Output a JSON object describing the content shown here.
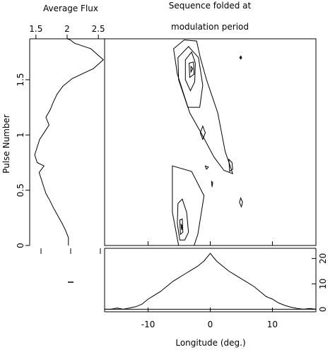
{
  "titles": {
    "left": "Average Flux",
    "right_line1": "Sequence folded at",
    "right_line2": "modulation period"
  },
  "chart_data": [
    {
      "type": "line",
      "name": "average-flux-profile",
      "xlabel": "Average Flux",
      "ylabel": "Pulse Number",
      "xlim": [
        1.4,
        2.6
      ],
      "ylim": [
        0,
        1.87
      ],
      "xticks": [
        "1.5",
        "2",
        "2.5"
      ],
      "yticks": [
        "0",
        "0.5",
        "1",
        "1.5"
      ],
      "x": [
        2.02,
        2.02,
        1.98,
        1.92,
        1.85,
        1.78,
        1.72,
        1.66,
        1.62,
        1.58,
        1.55,
        1.63,
        1.52,
        1.48,
        1.52,
        1.56,
        1.63,
        1.71,
        1.66,
        1.73,
        1.78,
        1.84,
        1.93,
        2.08,
        2.42,
        2.58,
        2.38,
        2.12,
        2.05,
        2.0
      ],
      "y": [
        0.0,
        0.07,
        0.13,
        0.2,
        0.27,
        0.34,
        0.41,
        0.47,
        0.54,
        0.61,
        0.66,
        0.72,
        0.75,
        0.82,
        0.89,
        0.96,
        1.02,
        1.09,
        1.16,
        1.23,
        1.3,
        1.37,
        1.44,
        1.51,
        1.6,
        1.68,
        1.78,
        1.83,
        1.86,
        1.87
      ]
    },
    {
      "type": "contour",
      "name": "folded-sequence-contours",
      "xlabel": "Longitude (deg.)",
      "ylabel": "Pulse Number",
      "xlim": [
        -17,
        17
      ],
      "ylim": [
        0,
        1.87
      ],
      "note_values_in_data_units": true,
      "contours": [
        [
          [
            -5.9,
            1.78
          ],
          [
            -4.2,
            1.86
          ],
          [
            -2.2,
            1.85
          ],
          [
            -1.6,
            1.7
          ],
          [
            -0.6,
            1.5
          ],
          [
            1.2,
            1.2
          ],
          [
            2.4,
            0.85
          ],
          [
            3.2,
            0.72
          ],
          [
            3.6,
            0.65
          ],
          [
            2.2,
            0.68
          ],
          [
            0.6,
            0.8
          ],
          [
            -1.3,
            1.0
          ],
          [
            -3.3,
            1.2
          ],
          [
            -5.3,
            1.55
          ],
          [
            -5.9,
            1.78
          ]
        ],
        [
          [
            -5.2,
            1.7
          ],
          [
            -3.5,
            1.8
          ],
          [
            -1.9,
            1.7
          ],
          [
            -1.2,
            1.45
          ],
          [
            -1.7,
            1.25
          ],
          [
            -3.6,
            1.25
          ],
          [
            -5.1,
            1.5
          ],
          [
            -5.2,
            1.7
          ]
        ],
        [
          [
            -4.0,
            1.68
          ],
          [
            -3.0,
            1.75
          ],
          [
            -2.4,
            1.65
          ],
          [
            -2.5,
            1.48
          ],
          [
            -3.2,
            1.4
          ],
          [
            -4.0,
            1.5
          ],
          [
            -4.0,
            1.68
          ]
        ],
        [
          [
            -3.4,
            1.65
          ],
          [
            -2.7,
            1.66
          ],
          [
            -2.6,
            1.55
          ],
          [
            -3.3,
            1.52
          ],
          [
            -3.4,
            1.65
          ]
        ],
        [
          [
            -3.1,
            1.62
          ],
          [
            -2.8,
            1.6
          ],
          [
            -3.1,
            1.57
          ],
          [
            -3.1,
            1.62
          ]
        ],
        [
          [
            -1.2,
            1.08
          ],
          [
            -0.8,
            1.02
          ],
          [
            -1.2,
            0.96
          ],
          [
            -1.6,
            1.02
          ],
          [
            -1.2,
            1.08
          ]
        ],
        [
          [
            3.0,
            0.78
          ],
          [
            3.5,
            0.75
          ],
          [
            3.6,
            0.69
          ],
          [
            3.1,
            0.67
          ],
          [
            3.0,
            0.78
          ]
        ],
        [
          [
            -0.8,
            0.72
          ],
          [
            -0.3,
            0.71
          ],
          [
            -0.6,
            0.69
          ],
          [
            -0.8,
            0.72
          ]
        ],
        [
          [
            -6.1,
            0.72
          ],
          [
            -3.0,
            0.67
          ],
          [
            -1.0,
            0.45
          ],
          [
            -2.0,
            0.1
          ],
          [
            -2.6,
            0.0
          ],
          [
            -5.1,
            0.0
          ],
          [
            -6.1,
            0.3
          ],
          [
            -6.1,
            0.72
          ]
        ],
        [
          [
            -5.2,
            0.38
          ],
          [
            -4.5,
            0.42
          ],
          [
            -3.8,
            0.3
          ],
          [
            -3.5,
            0.12
          ],
          [
            -4.1,
            0.05
          ],
          [
            -4.9,
            0.05
          ],
          [
            -5.3,
            0.2
          ],
          [
            -5.2,
            0.38
          ]
        ],
        [
          [
            -4.9,
            0.23
          ],
          [
            -4.5,
            0.24
          ],
          [
            -4.4,
            0.12
          ],
          [
            -4.8,
            0.1
          ],
          [
            -4.9,
            0.23
          ]
        ],
        [
          [
            -4.7,
            0.19
          ],
          [
            -4.5,
            0.18
          ],
          [
            -4.6,
            0.14
          ],
          [
            -4.7,
            0.19
          ]
        ],
        [
          [
            0.2,
            0.58
          ],
          [
            0.4,
            0.57
          ],
          [
            0.3,
            0.53
          ],
          [
            0.2,
            0.58
          ]
        ],
        [
          [
            4.9,
            0.43
          ],
          [
            5.2,
            0.39
          ],
          [
            5.0,
            0.35
          ],
          [
            4.7,
            0.39
          ],
          [
            4.9,
            0.43
          ]
        ]
      ],
      "markers": [
        [
          4.9,
          1.7
        ]
      ]
    },
    {
      "type": "line",
      "name": "integrated-profile",
      "xlabel": "Longitude (deg.)",
      "xlim": [
        -17,
        17
      ],
      "ylim": [
        -1,
        24
      ],
      "xticks": [
        "-10",
        "0",
        "10"
      ],
      "yticks": [
        "0",
        "10",
        "20"
      ],
      "x": [
        -17,
        -16,
        -15,
        -14,
        -13,
        -12,
        -11,
        -10,
        -9,
        -8,
        -7,
        -6,
        -5,
        -4,
        -3,
        -2,
        -1,
        0,
        1,
        2,
        3,
        4,
        5,
        6,
        7,
        8,
        9,
        10,
        11,
        12,
        13,
        14,
        15,
        16,
        17
      ],
      "y": [
        0,
        0,
        0.5,
        0,
        0.5,
        1,
        2,
        4,
        5.5,
        7,
        9,
        11,
        12.5,
        14,
        15.5,
        17,
        19,
        22,
        19,
        17,
        15,
        13.5,
        12,
        10.5,
        9,
        7,
        5,
        4,
        2.5,
        1.5,
        0.8,
        0.3,
        0,
        0.3,
        0
      ]
    }
  ]
}
